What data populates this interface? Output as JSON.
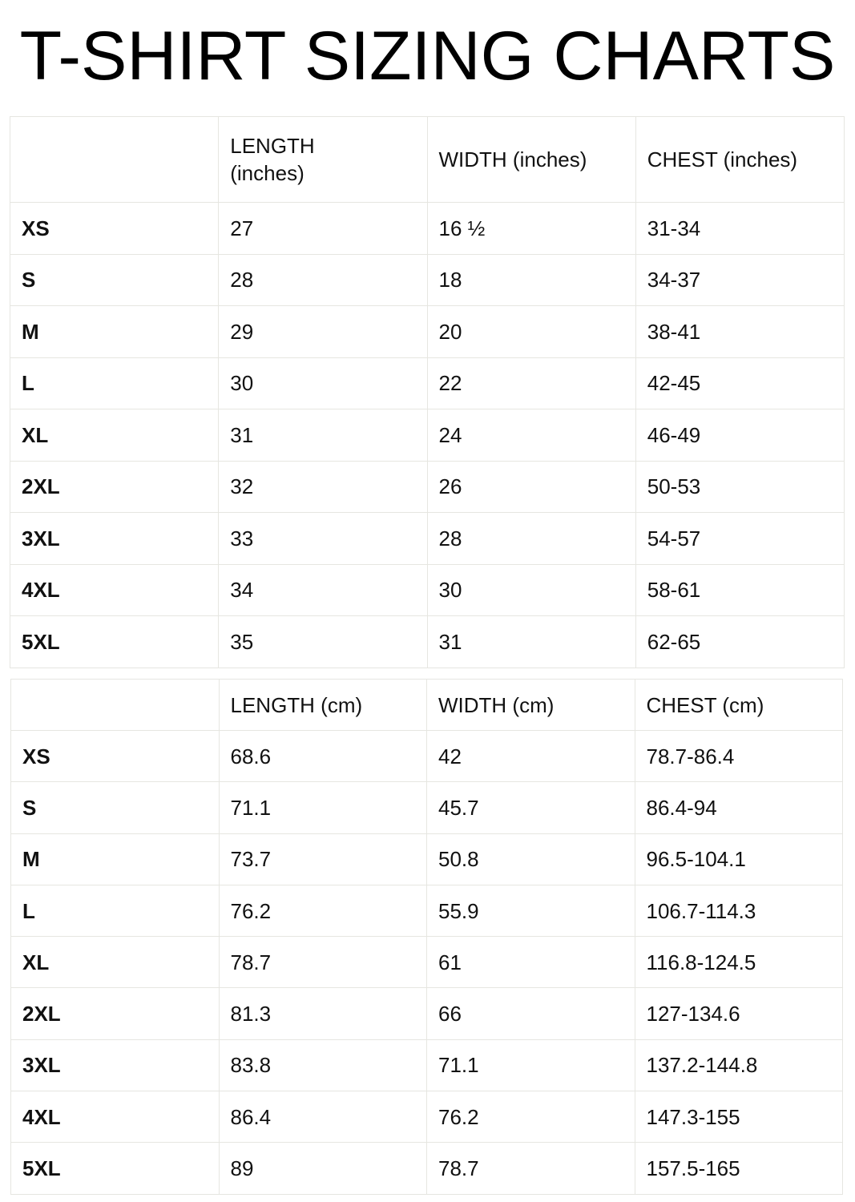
{
  "title": "T-SHIRT SIZING CHARTS",
  "tables": [
    {
      "headers": [
        "",
        "LENGTH (inches)",
        "WIDTH (inches)",
        "CHEST (inches)"
      ],
      "rows": [
        [
          "XS",
          "27",
          "16 ½",
          "31-34"
        ],
        [
          "S",
          "28",
          "18",
          "34-37"
        ],
        [
          "M",
          "29",
          "20",
          "38-41"
        ],
        [
          "L",
          "30",
          "22",
          "42-45"
        ],
        [
          "XL",
          "31",
          "24",
          "46-49"
        ],
        [
          "2XL",
          "32",
          "26",
          "50-53"
        ],
        [
          "3XL",
          "33",
          "28",
          "54-57"
        ],
        [
          "4XL",
          "34",
          "30",
          "58-61"
        ],
        [
          "5XL",
          "35",
          "31",
          "62-65"
        ]
      ]
    },
    {
      "headers": [
        "",
        "LENGTH (cm)",
        "WIDTH (cm)",
        "CHEST (cm)"
      ],
      "rows": [
        [
          "XS",
          "68.6",
          "42",
          "78.7-86.4"
        ],
        [
          "S",
          "71.1",
          "45.7",
          "86.4-94"
        ],
        [
          "M",
          "73.7",
          "50.8",
          "96.5-104.1"
        ],
        [
          "L",
          "76.2",
          "55.9",
          "106.7-114.3"
        ],
        [
          "XL",
          "78.7",
          "61",
          "116.8-124.5"
        ],
        [
          "2XL",
          "81.3",
          "66",
          "127-134.6"
        ],
        [
          "3XL",
          "83.8",
          "71.1",
          "137.2-144.8"
        ],
        [
          "4XL",
          "86.4",
          "76.2",
          "147.3-155"
        ],
        [
          "5XL",
          "89",
          "78.7",
          "157.5-165"
        ]
      ]
    }
  ]
}
